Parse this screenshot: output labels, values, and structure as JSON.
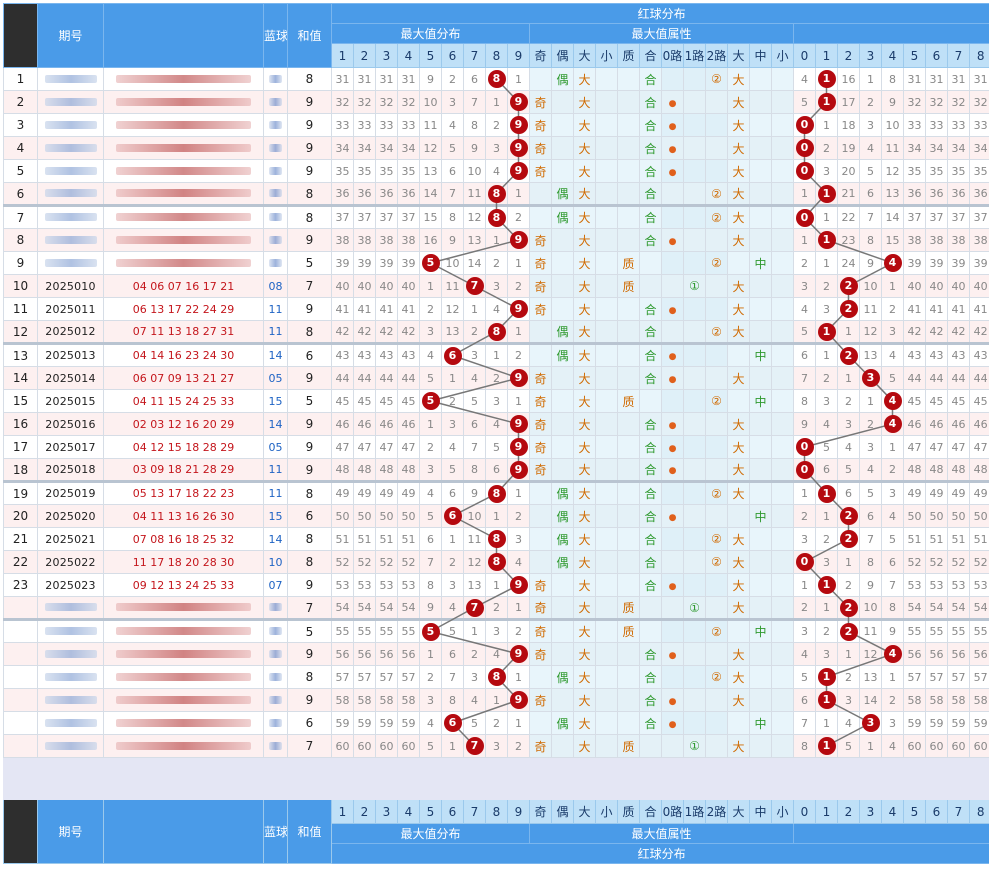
{
  "header": {
    "issue_label": "期号",
    "blue_label": "蓝球",
    "sum_label": "和值",
    "red_dist": "红球分布",
    "max_dist": "最大值分布",
    "max_attr": "最大值属性",
    "max_digits": [
      "1",
      "2",
      "3",
      "4",
      "5",
      "6",
      "7",
      "8",
      "9"
    ],
    "attr_labels": [
      "奇",
      "偶",
      "大",
      "小",
      "质",
      "合",
      "0路",
      "1路",
      "2路",
      "大",
      "中",
      "小"
    ],
    "tail_digits": [
      "0",
      "1",
      "2",
      "3",
      "4",
      "5",
      "6",
      "7",
      "8"
    ]
  },
  "rows": [
    {
      "idx": "1",
      "issue": "",
      "reds": "",
      "blue": "",
      "sum": "8",
      "max": [
        31,
        31,
        31,
        31,
        9,
        2,
        6,
        "8",
        1
      ],
      "attr": [
        "",
        "偶",
        "大",
        "",
        "",
        "合",
        "",
        "",
        "②",
        "大",
        "",
        ""
      ],
      "tail": [
        4,
        "1",
        16,
        1,
        8,
        31,
        31,
        31,
        31
      ]
    },
    {
      "idx": "2",
      "issue": "",
      "reds": "",
      "blue": "",
      "sum": "9",
      "max": [
        32,
        32,
        32,
        32,
        10,
        3,
        7,
        1,
        "9"
      ],
      "attr": [
        "奇",
        "",
        "大",
        "",
        "",
        "合",
        "●",
        "",
        "",
        "大",
        "",
        ""
      ],
      "tail": [
        5,
        "1",
        17,
        2,
        9,
        32,
        32,
        32,
        32
      ]
    },
    {
      "idx": "3",
      "issue": "",
      "reds": "",
      "blue": "",
      "sum": "9",
      "max": [
        33,
        33,
        33,
        33,
        11,
        4,
        8,
        2,
        "9"
      ],
      "attr": [
        "奇",
        "",
        "大",
        "",
        "",
        "合",
        "●",
        "",
        "",
        "大",
        "",
        ""
      ],
      "tail": [
        "0",
        1,
        18,
        3,
        10,
        33,
        33,
        33,
        33
      ]
    },
    {
      "idx": "4",
      "issue": "",
      "reds": "",
      "blue": "",
      "sum": "9",
      "max": [
        34,
        34,
        34,
        34,
        12,
        5,
        9,
        3,
        "9"
      ],
      "attr": [
        "奇",
        "",
        "大",
        "",
        "",
        "合",
        "●",
        "",
        "",
        "大",
        "",
        ""
      ],
      "tail": [
        "0",
        2,
        19,
        4,
        11,
        34,
        34,
        34,
        34
      ]
    },
    {
      "idx": "5",
      "issue": "",
      "reds": "",
      "blue": "",
      "sum": "9",
      "max": [
        35,
        35,
        35,
        35,
        13,
        6,
        10,
        4,
        "9"
      ],
      "attr": [
        "奇",
        "",
        "大",
        "",
        "",
        "合",
        "●",
        "",
        "",
        "大",
        "",
        ""
      ],
      "tail": [
        "0",
        3,
        20,
        5,
        12,
        35,
        35,
        35,
        35
      ]
    },
    {
      "idx": "6",
      "issue": "",
      "reds": "",
      "blue": "",
      "sum": "8",
      "max": [
        36,
        36,
        36,
        36,
        14,
        7,
        11,
        "8",
        1
      ],
      "attr": [
        "",
        "偶",
        "大",
        "",
        "",
        "合",
        "",
        "",
        "②",
        "大",
        "",
        ""
      ],
      "tail": [
        1,
        "1",
        21,
        6,
        13,
        36,
        36,
        36,
        36
      ]
    },
    {
      "idx": "7",
      "issue": "",
      "reds": "",
      "blue": "",
      "sum": "8",
      "max": [
        37,
        37,
        37,
        37,
        15,
        8,
        12,
        "8",
        2
      ],
      "attr": [
        "",
        "偶",
        "大",
        "",
        "",
        "合",
        "",
        "",
        "②",
        "大",
        "",
        ""
      ],
      "tail": [
        "0",
        1,
        22,
        7,
        14,
        37,
        37,
        37,
        37
      ]
    },
    {
      "idx": "8",
      "issue": "",
      "reds": "",
      "blue": "",
      "sum": "9",
      "max": [
        38,
        38,
        38,
        38,
        16,
        9,
        13,
        1,
        "9"
      ],
      "attr": [
        "奇",
        "",
        "大",
        "",
        "",
        "合",
        "●",
        "",
        "",
        "大",
        "",
        ""
      ],
      "tail": [
        1,
        "1",
        23,
        8,
        15,
        38,
        38,
        38,
        38
      ]
    },
    {
      "idx": "9",
      "issue": "",
      "reds": "",
      "blue": "",
      "sum": "5",
      "max": [
        39,
        39,
        39,
        39,
        "5",
        10,
        14,
        2,
        1
      ],
      "attr": [
        "奇",
        "",
        "大",
        "",
        "质",
        "",
        "",
        "",
        "②",
        "",
        "中",
        ""
      ],
      "tail": [
        2,
        1,
        24,
        9,
        "4",
        39,
        39,
        39,
        39
      ]
    },
    {
      "idx": "10",
      "issue": "2025010",
      "reds": "04 06 07 16 17 21",
      "blue": "08",
      "sum": "7",
      "max": [
        40,
        40,
        40,
        40,
        1,
        11,
        "7",
        3,
        2
      ],
      "attr": [
        "奇",
        "",
        "大",
        "",
        "质",
        "",
        "",
        "①",
        "",
        "大",
        "",
        ""
      ],
      "tail": [
        3,
        2,
        "2",
        10,
        1,
        40,
        40,
        40,
        40
      ]
    },
    {
      "idx": "11",
      "issue": "2025011",
      "reds": "06 13 17 22 24 29",
      "blue": "11",
      "sum": "9",
      "max": [
        41,
        41,
        41,
        41,
        2,
        12,
        1,
        4,
        "9"
      ],
      "attr": [
        "奇",
        "",
        "大",
        "",
        "",
        "合",
        "●",
        "",
        "",
        "大",
        "",
        ""
      ],
      "tail": [
        4,
        3,
        "2",
        11,
        2,
        41,
        41,
        41,
        41
      ]
    },
    {
      "idx": "12",
      "issue": "2025012",
      "reds": "07 11 13 18 27 31",
      "blue": "11",
      "sum": "8",
      "max": [
        42,
        42,
        42,
        42,
        3,
        13,
        2,
        "8",
        1
      ],
      "attr": [
        "",
        "偶",
        "大",
        "",
        "",
        "合",
        "",
        "",
        "②",
        "大",
        "",
        ""
      ],
      "tail": [
        5,
        "1",
        1,
        12,
        3,
        42,
        42,
        42,
        42
      ]
    },
    {
      "idx": "13",
      "issue": "2025013",
      "reds": "04 14 16 23 24 30",
      "blue": "14",
      "sum": "6",
      "max": [
        43,
        43,
        43,
        43,
        4,
        "6",
        3,
        1,
        2
      ],
      "attr": [
        "",
        "偶",
        "大",
        "",
        "",
        "合",
        "●",
        "",
        "",
        "",
        "中",
        ""
      ],
      "tail": [
        6,
        1,
        "2",
        13,
        4,
        43,
        43,
        43,
        43
      ]
    },
    {
      "idx": "14",
      "issue": "2025014",
      "reds": "06 07 09 13 21 27",
      "blue": "05",
      "sum": "9",
      "max": [
        44,
        44,
        44,
        44,
        5,
        1,
        4,
        2,
        "9"
      ],
      "attr": [
        "奇",
        "",
        "大",
        "",
        "",
        "合",
        "●",
        "",
        "",
        "大",
        "",
        ""
      ],
      "tail": [
        7,
        2,
        1,
        "3",
        5,
        44,
        44,
        44,
        44
      ]
    },
    {
      "idx": "15",
      "issue": "2025015",
      "reds": "04 11 15 24 25 33",
      "blue": "15",
      "sum": "5",
      "max": [
        45,
        45,
        45,
        45,
        "5",
        2,
        5,
        3,
        1
      ],
      "attr": [
        "奇",
        "",
        "大",
        "",
        "质",
        "",
        "",
        "",
        "②",
        "",
        "中",
        ""
      ],
      "tail": [
        8,
        3,
        2,
        1,
        "4",
        45,
        45,
        45,
        45
      ]
    },
    {
      "idx": "16",
      "issue": "2025016",
      "reds": "02 03 12 16 20 29",
      "blue": "14",
      "sum": "9",
      "max": [
        46,
        46,
        46,
        46,
        1,
        3,
        6,
        4,
        "9"
      ],
      "attr": [
        "奇",
        "",
        "大",
        "",
        "",
        "合",
        "●",
        "",
        "",
        "大",
        "",
        ""
      ],
      "tail": [
        9,
        4,
        3,
        2,
        "4",
        46,
        46,
        46,
        46
      ]
    },
    {
      "idx": "17",
      "issue": "2025017",
      "reds": "04 12 15 18 28 29",
      "blue": "05",
      "sum": "9",
      "max": [
        47,
        47,
        47,
        47,
        2,
        4,
        7,
        5,
        "9"
      ],
      "attr": [
        "奇",
        "",
        "大",
        "",
        "",
        "合",
        "●",
        "",
        "",
        "大",
        "",
        ""
      ],
      "tail": [
        "0",
        5,
        4,
        3,
        1,
        47,
        47,
        47,
        47
      ]
    },
    {
      "idx": "18",
      "issue": "2025018",
      "reds": "03 09 18 21 28 29",
      "blue": "11",
      "sum": "9",
      "max": [
        48,
        48,
        48,
        48,
        3,
        5,
        8,
        6,
        "9"
      ],
      "attr": [
        "奇",
        "",
        "大",
        "",
        "",
        "合",
        "●",
        "",
        "",
        "大",
        "",
        ""
      ],
      "tail": [
        "0",
        6,
        5,
        4,
        2,
        48,
        48,
        48,
        48
      ]
    },
    {
      "idx": "19",
      "issue": "2025019",
      "reds": "05 13 17 18 22 23",
      "blue": "11",
      "sum": "8",
      "max": [
        49,
        49,
        49,
        49,
        4,
        6,
        9,
        "8",
        1
      ],
      "attr": [
        "",
        "偶",
        "大",
        "",
        "",
        "合",
        "",
        "",
        "②",
        "大",
        "",
        ""
      ],
      "tail": [
        1,
        "1",
        6,
        5,
        3,
        49,
        49,
        49,
        49
      ]
    },
    {
      "idx": "20",
      "issue": "2025020",
      "reds": "04 11 13 16 26 30",
      "blue": "15",
      "sum": "6",
      "max": [
        50,
        50,
        50,
        50,
        5,
        "6",
        10,
        1,
        2
      ],
      "attr": [
        "",
        "偶",
        "大",
        "",
        "",
        "合",
        "●",
        "",
        "",
        "",
        "中",
        ""
      ],
      "tail": [
        2,
        1,
        "2",
        6,
        4,
        50,
        50,
        50,
        50
      ]
    },
    {
      "idx": "21",
      "issue": "2025021",
      "reds": "07 08 16 18 25 32",
      "blue": "14",
      "sum": "8",
      "max": [
        51,
        51,
        51,
        51,
        6,
        1,
        11,
        "8",
        3
      ],
      "attr": [
        "",
        "偶",
        "大",
        "",
        "",
        "合",
        "",
        "",
        "②",
        "大",
        "",
        ""
      ],
      "tail": [
        3,
        2,
        "2",
        7,
        5,
        51,
        51,
        51,
        51
      ]
    },
    {
      "idx": "22",
      "issue": "2025022",
      "reds": "11 17 18 20 28 30",
      "blue": "10",
      "sum": "8",
      "max": [
        52,
        52,
        52,
        52,
        7,
        2,
        12,
        "8",
        4
      ],
      "attr": [
        "",
        "偶",
        "大",
        "",
        "",
        "合",
        "",
        "",
        "②",
        "大",
        "",
        ""
      ],
      "tail": [
        "0",
        3,
        1,
        8,
        6,
        52,
        52,
        52,
        52
      ]
    },
    {
      "idx": "23",
      "issue": "2025023",
      "reds": "09 12 13 24 25 33",
      "blue": "07",
      "sum": "9",
      "max": [
        53,
        53,
        53,
        53,
        8,
        3,
        13,
        1,
        "9"
      ],
      "attr": [
        "奇",
        "",
        "大",
        "",
        "",
        "合",
        "●",
        "",
        "",
        "大",
        "",
        ""
      ],
      "tail": [
        1,
        "1",
        2,
        9,
        7,
        53,
        53,
        53,
        53
      ]
    },
    {
      "idx": "",
      "issue": "",
      "reds": "",
      "blue": "",
      "sum": "7",
      "max": [
        54,
        54,
        54,
        54,
        9,
        4,
        "7",
        2,
        1
      ],
      "attr": [
        "奇",
        "",
        "大",
        "",
        "质",
        "",
        "",
        "①",
        "",
        "大",
        "",
        ""
      ],
      "tail": [
        2,
        1,
        "2",
        10,
        8,
        54,
        54,
        54,
        54
      ]
    },
    {
      "idx": "",
      "issue": "",
      "reds": "",
      "blue": "",
      "sum": "5",
      "max": [
        55,
        55,
        55,
        55,
        "5",
        5,
        1,
        3,
        2
      ],
      "attr": [
        "奇",
        "",
        "大",
        "",
        "质",
        "",
        "",
        "",
        "②",
        "",
        "中",
        ""
      ],
      "tail": [
        3,
        2,
        "2",
        11,
        9,
        55,
        55,
        55,
        55
      ]
    },
    {
      "idx": "",
      "issue": "",
      "reds": "",
      "blue": "",
      "sum": "9",
      "max": [
        56,
        56,
        56,
        56,
        1,
        6,
        2,
        4,
        "9"
      ],
      "attr": [
        "奇",
        "",
        "大",
        "",
        "",
        "合",
        "●",
        "",
        "",
        "大",
        "",
        ""
      ],
      "tail": [
        4,
        3,
        1,
        12,
        "4",
        56,
        56,
        56,
        56
      ]
    },
    {
      "idx": "",
      "issue": "",
      "reds": "",
      "blue": "",
      "sum": "8",
      "max": [
        57,
        57,
        57,
        57,
        2,
        7,
        3,
        "8",
        1
      ],
      "attr": [
        "",
        "偶",
        "大",
        "",
        "",
        "合",
        "",
        "",
        "②",
        "大",
        "",
        ""
      ],
      "tail": [
        5,
        "1",
        2,
        13,
        1,
        57,
        57,
        57,
        57
      ]
    },
    {
      "idx": "",
      "issue": "",
      "reds": "",
      "blue": "",
      "sum": "9",
      "max": [
        58,
        58,
        58,
        58,
        3,
        8,
        4,
        1,
        "9"
      ],
      "attr": [
        "奇",
        "",
        "大",
        "",
        "",
        "合",
        "●",
        "",
        "",
        "大",
        "",
        ""
      ],
      "tail": [
        6,
        "1",
        3,
        14,
        2,
        58,
        58,
        58,
        58
      ]
    },
    {
      "idx": "",
      "issue": "",
      "reds": "",
      "blue": "",
      "sum": "6",
      "max": [
        59,
        59,
        59,
        59,
        4,
        "6",
        5,
        2,
        1
      ],
      "attr": [
        "",
        "偶",
        "大",
        "",
        "",
        "合",
        "●",
        "",
        "",
        "",
        "中",
        ""
      ],
      "tail": [
        7,
        1,
        4,
        "3",
        3,
        59,
        59,
        59,
        59
      ]
    },
    {
      "idx": "",
      "issue": "",
      "reds": "",
      "blue": "",
      "sum": "7",
      "max": [
        60,
        60,
        60,
        60,
        5,
        1,
        "7",
        3,
        2
      ],
      "attr": [
        "奇",
        "",
        "大",
        "",
        "质",
        "",
        "",
        "①",
        "",
        "大",
        "",
        ""
      ],
      "tail": [
        8,
        "1",
        5,
        1,
        4,
        60,
        60,
        60,
        60
      ]
    }
  ]
}
